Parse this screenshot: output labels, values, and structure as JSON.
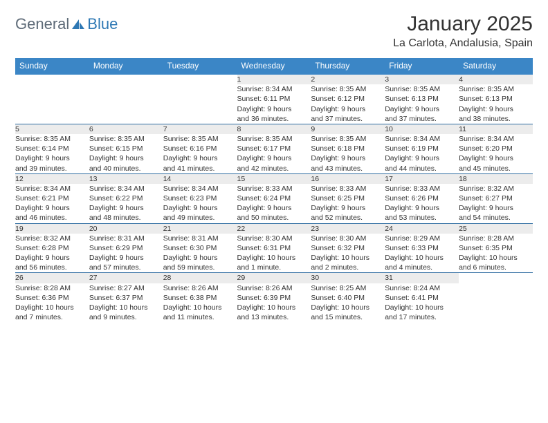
{
  "logo": {
    "text_general": "General",
    "text_blue": "Blue"
  },
  "header": {
    "month_title": "January 2025",
    "location": "La Carlota, Andalusia, Spain"
  },
  "day_headers": [
    "Sunday",
    "Monday",
    "Tuesday",
    "Wednesday",
    "Thursday",
    "Friday",
    "Saturday"
  ],
  "colors": {
    "header_bg": "#3b86c6",
    "header_text": "#ffffff",
    "daynum_bg": "#ececec",
    "row_border": "#2b6aa0",
    "body_text": "#333333",
    "logo_gray": "#5d6a77",
    "logo_blue": "#2e78b4"
  },
  "weeks": [
    {
      "cells": [
        {
          "empty": true
        },
        {
          "empty": true
        },
        {
          "empty": true
        },
        {
          "day": "1",
          "sunrise": "Sunrise: 8:34 AM",
          "sunset": "Sunset: 6:11 PM",
          "daylight1": "Daylight: 9 hours",
          "daylight2": "and 36 minutes."
        },
        {
          "day": "2",
          "sunrise": "Sunrise: 8:35 AM",
          "sunset": "Sunset: 6:12 PM",
          "daylight1": "Daylight: 9 hours",
          "daylight2": "and 37 minutes."
        },
        {
          "day": "3",
          "sunrise": "Sunrise: 8:35 AM",
          "sunset": "Sunset: 6:13 PM",
          "daylight1": "Daylight: 9 hours",
          "daylight2": "and 37 minutes."
        },
        {
          "day": "4",
          "sunrise": "Sunrise: 8:35 AM",
          "sunset": "Sunset: 6:13 PM",
          "daylight1": "Daylight: 9 hours",
          "daylight2": "and 38 minutes."
        }
      ]
    },
    {
      "cells": [
        {
          "day": "5",
          "sunrise": "Sunrise: 8:35 AM",
          "sunset": "Sunset: 6:14 PM",
          "daylight1": "Daylight: 9 hours",
          "daylight2": "and 39 minutes."
        },
        {
          "day": "6",
          "sunrise": "Sunrise: 8:35 AM",
          "sunset": "Sunset: 6:15 PM",
          "daylight1": "Daylight: 9 hours",
          "daylight2": "and 40 minutes."
        },
        {
          "day": "7",
          "sunrise": "Sunrise: 8:35 AM",
          "sunset": "Sunset: 6:16 PM",
          "daylight1": "Daylight: 9 hours",
          "daylight2": "and 41 minutes."
        },
        {
          "day": "8",
          "sunrise": "Sunrise: 8:35 AM",
          "sunset": "Sunset: 6:17 PM",
          "daylight1": "Daylight: 9 hours",
          "daylight2": "and 42 minutes."
        },
        {
          "day": "9",
          "sunrise": "Sunrise: 8:35 AM",
          "sunset": "Sunset: 6:18 PM",
          "daylight1": "Daylight: 9 hours",
          "daylight2": "and 43 minutes."
        },
        {
          "day": "10",
          "sunrise": "Sunrise: 8:34 AM",
          "sunset": "Sunset: 6:19 PM",
          "daylight1": "Daylight: 9 hours",
          "daylight2": "and 44 minutes."
        },
        {
          "day": "11",
          "sunrise": "Sunrise: 8:34 AM",
          "sunset": "Sunset: 6:20 PM",
          "daylight1": "Daylight: 9 hours",
          "daylight2": "and 45 minutes."
        }
      ]
    },
    {
      "cells": [
        {
          "day": "12",
          "sunrise": "Sunrise: 8:34 AM",
          "sunset": "Sunset: 6:21 PM",
          "daylight1": "Daylight: 9 hours",
          "daylight2": "and 46 minutes."
        },
        {
          "day": "13",
          "sunrise": "Sunrise: 8:34 AM",
          "sunset": "Sunset: 6:22 PM",
          "daylight1": "Daylight: 9 hours",
          "daylight2": "and 48 minutes."
        },
        {
          "day": "14",
          "sunrise": "Sunrise: 8:34 AM",
          "sunset": "Sunset: 6:23 PM",
          "daylight1": "Daylight: 9 hours",
          "daylight2": "and 49 minutes."
        },
        {
          "day": "15",
          "sunrise": "Sunrise: 8:33 AM",
          "sunset": "Sunset: 6:24 PM",
          "daylight1": "Daylight: 9 hours",
          "daylight2": "and 50 minutes."
        },
        {
          "day": "16",
          "sunrise": "Sunrise: 8:33 AM",
          "sunset": "Sunset: 6:25 PM",
          "daylight1": "Daylight: 9 hours",
          "daylight2": "and 52 minutes."
        },
        {
          "day": "17",
          "sunrise": "Sunrise: 8:33 AM",
          "sunset": "Sunset: 6:26 PM",
          "daylight1": "Daylight: 9 hours",
          "daylight2": "and 53 minutes."
        },
        {
          "day": "18",
          "sunrise": "Sunrise: 8:32 AM",
          "sunset": "Sunset: 6:27 PM",
          "daylight1": "Daylight: 9 hours",
          "daylight2": "and 54 minutes."
        }
      ]
    },
    {
      "cells": [
        {
          "day": "19",
          "sunrise": "Sunrise: 8:32 AM",
          "sunset": "Sunset: 6:28 PM",
          "daylight1": "Daylight: 9 hours",
          "daylight2": "and 56 minutes."
        },
        {
          "day": "20",
          "sunrise": "Sunrise: 8:31 AM",
          "sunset": "Sunset: 6:29 PM",
          "daylight1": "Daylight: 9 hours",
          "daylight2": "and 57 minutes."
        },
        {
          "day": "21",
          "sunrise": "Sunrise: 8:31 AM",
          "sunset": "Sunset: 6:30 PM",
          "daylight1": "Daylight: 9 hours",
          "daylight2": "and 59 minutes."
        },
        {
          "day": "22",
          "sunrise": "Sunrise: 8:30 AM",
          "sunset": "Sunset: 6:31 PM",
          "daylight1": "Daylight: 10 hours",
          "daylight2": "and 1 minute."
        },
        {
          "day": "23",
          "sunrise": "Sunrise: 8:30 AM",
          "sunset": "Sunset: 6:32 PM",
          "daylight1": "Daylight: 10 hours",
          "daylight2": "and 2 minutes."
        },
        {
          "day": "24",
          "sunrise": "Sunrise: 8:29 AM",
          "sunset": "Sunset: 6:33 PM",
          "daylight1": "Daylight: 10 hours",
          "daylight2": "and 4 minutes."
        },
        {
          "day": "25",
          "sunrise": "Sunrise: 8:28 AM",
          "sunset": "Sunset: 6:35 PM",
          "daylight1": "Daylight: 10 hours",
          "daylight2": "and 6 minutes."
        }
      ]
    },
    {
      "cells": [
        {
          "day": "26",
          "sunrise": "Sunrise: 8:28 AM",
          "sunset": "Sunset: 6:36 PM",
          "daylight1": "Daylight: 10 hours",
          "daylight2": "and 7 minutes."
        },
        {
          "day": "27",
          "sunrise": "Sunrise: 8:27 AM",
          "sunset": "Sunset: 6:37 PM",
          "daylight1": "Daylight: 10 hours",
          "daylight2": "and 9 minutes."
        },
        {
          "day": "28",
          "sunrise": "Sunrise: 8:26 AM",
          "sunset": "Sunset: 6:38 PM",
          "daylight1": "Daylight: 10 hours",
          "daylight2": "and 11 minutes."
        },
        {
          "day": "29",
          "sunrise": "Sunrise: 8:26 AM",
          "sunset": "Sunset: 6:39 PM",
          "daylight1": "Daylight: 10 hours",
          "daylight2": "and 13 minutes."
        },
        {
          "day": "30",
          "sunrise": "Sunrise: 8:25 AM",
          "sunset": "Sunset: 6:40 PM",
          "daylight1": "Daylight: 10 hours",
          "daylight2": "and 15 minutes."
        },
        {
          "day": "31",
          "sunrise": "Sunrise: 8:24 AM",
          "sunset": "Sunset: 6:41 PM",
          "daylight1": "Daylight: 10 hours",
          "daylight2": "and 17 minutes."
        },
        {
          "empty": true
        }
      ]
    }
  ]
}
